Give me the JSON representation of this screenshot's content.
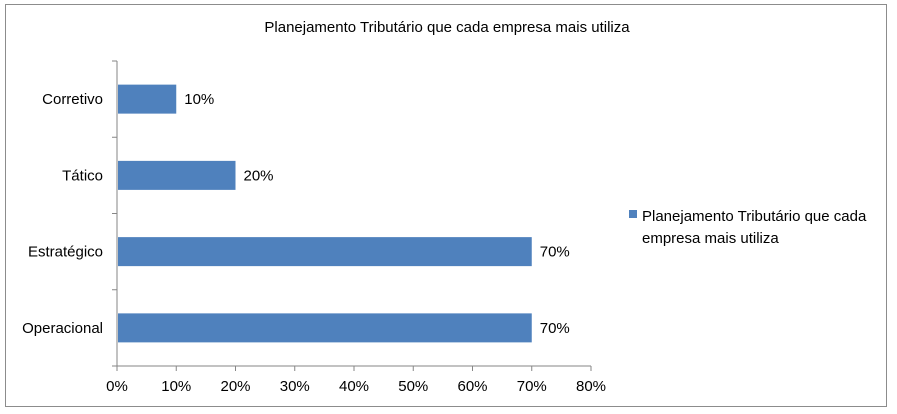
{
  "chart_data": {
    "type": "bar",
    "orientation": "horizontal",
    "title": "Planejamento Tributário que cada empresa mais utiliza",
    "categories": [
      "Corretivo",
      "Tático",
      "Estratégico",
      "Operacional"
    ],
    "series": [
      {
        "name": "Planejamento Tributário que cada empresa mais utiliza",
        "values": [
          10,
          20,
          70,
          70
        ],
        "color": "#4f81bd"
      }
    ],
    "data_labels": [
      "10%",
      "20%",
      "70%",
      "70%"
    ],
    "xlim": [
      0,
      80
    ],
    "x_ticks": [
      "0%",
      "10%",
      "20%",
      "30%",
      "40%",
      "50%",
      "60%",
      "70%",
      "80%"
    ],
    "legend_position": "right",
    "legend_lines": [
      "Planejamento Tributário que cada",
      "empresa mais utiliza"
    ],
    "grid": false
  }
}
